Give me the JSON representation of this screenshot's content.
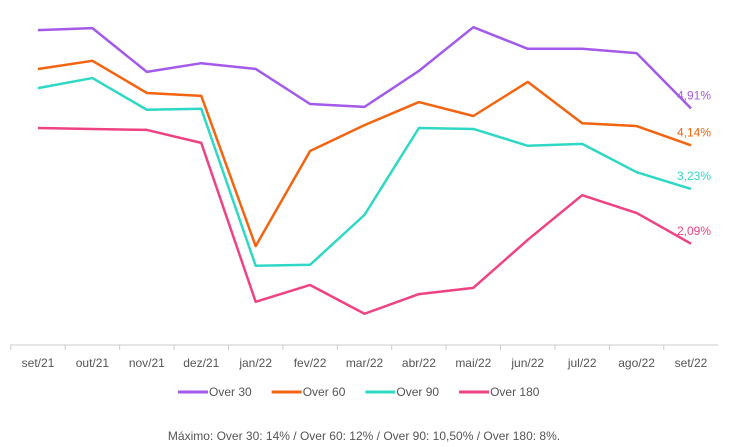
{
  "chart_data": {
    "type": "line",
    "categories": [
      "set/21",
      "out/21",
      "nov/21",
      "dez/21",
      "jan/22",
      "fev/22",
      "mar/22",
      "abr/22",
      "mai/22",
      "jun/22",
      "jul/22",
      "ago/22",
      "set/22"
    ],
    "series": [
      {
        "name": "Over 30",
        "color": "#a35ae8",
        "values": [
          6.54,
          6.58,
          5.67,
          5.85,
          5.73,
          5.0,
          4.94,
          5.69,
          6.6,
          6.15,
          6.15,
          6.06,
          4.91
        ],
        "value_labels": [
          null,
          null,
          null,
          null,
          null,
          null,
          null,
          null,
          null,
          null,
          null,
          null,
          "4,91%"
        ]
      },
      {
        "name": "Over 60",
        "color": "#f2640f",
        "values": [
          5.73,
          5.9,
          5.23,
          5.17,
          2.04,
          4.02,
          4.56,
          5.04,
          4.75,
          5.46,
          4.6,
          4.54,
          4.14
        ],
        "value_labels": [
          null,
          null,
          null,
          null,
          null,
          null,
          null,
          null,
          null,
          null,
          null,
          null,
          "4,14%"
        ]
      },
      {
        "name": "Over 90",
        "color": "#2fd8c4",
        "values": [
          5.33,
          5.54,
          4.88,
          4.9,
          1.63,
          1.65,
          2.69,
          4.5,
          4.48,
          4.13,
          4.17,
          3.58,
          3.23
        ],
        "value_labels": [
          null,
          null,
          null,
          null,
          null,
          null,
          null,
          null,
          null,
          null,
          null,
          null,
          "3,23%"
        ]
      },
      {
        "name": "Over 180",
        "color": "#ee4283",
        "values": [
          4.5,
          4.48,
          4.46,
          4.19,
          0.88,
          1.23,
          0.63,
          1.04,
          1.17,
          2.17,
          3.1,
          2.73,
          2.09
        ],
        "value_labels": [
          null,
          null,
          null,
          null,
          null,
          null,
          null,
          null,
          null,
          null,
          null,
          null,
          "2,09%"
        ]
      }
    ],
    "ylim": [
      0,
      7
    ],
    "note": "Máximo: Over 30: 14% / Over 60: 12% / Over 90: 10,50% / Over 180: 8%."
  }
}
